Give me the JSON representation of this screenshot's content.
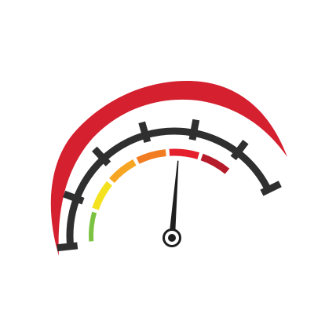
{
  "gauge": {
    "icon": "speedometer-icon",
    "needle_level": 0.68,
    "tick_count": 7,
    "scale_segments": [
      {
        "name": "green",
        "color": "#7cc242"
      },
      {
        "name": "yellow",
        "color": "#f5e21f"
      },
      {
        "name": "orange",
        "color": "#f6a623"
      },
      {
        "name": "deep-orange",
        "color": "#f27c22"
      },
      {
        "name": "red",
        "color": "#e4202c"
      },
      {
        "name": "dark-red",
        "color": "#b51b2b"
      }
    ],
    "colors": {
      "outer_arc": "#d4202f",
      "ticks": "#2f2f2f",
      "needle": "#1e1e1e",
      "hub_ring": "#1e1e1e",
      "hub_fill": "#ffffff"
    }
  }
}
